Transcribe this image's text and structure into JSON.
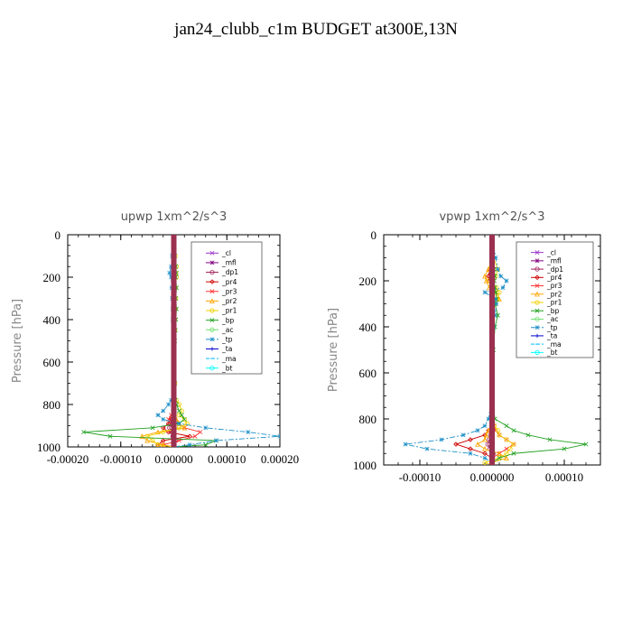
{
  "title": "jan24_clubb_c1m  BUDGET at300E,13N",
  "chart_data": [
    {
      "type": "line",
      "title": "upwp   1xm^2/s^3",
      "ylabel": "Pressure [hPa]",
      "xlabel": "",
      "xlim": [
        -0.0002,
        0.0002
      ],
      "ylim": [
        1000,
        0
      ],
      "xticks": [
        -0.0002,
        -0.0001,
        0.0,
        0.0001,
        0.0002
      ],
      "xtick_labels": [
        "-0.00020",
        "-0.00010",
        "0.00000",
        "0.00010",
        "0.00020"
      ],
      "yticks": [
        0,
        200,
        400,
        600,
        800,
        1000
      ],
      "ytick_labels": [
        "0",
        "200",
        "400",
        "600",
        "800",
        "1000"
      ],
      "legend_position": "top-right",
      "pressure": [
        0,
        100,
        150,
        180,
        200,
        250,
        300,
        350,
        400,
        450,
        500,
        600,
        700,
        780,
        800,
        830,
        850,
        870,
        890,
        910,
        930,
        950,
        970,
        990,
        1000
      ],
      "series": [
        {
          "name": "_cl",
          "color": "#9932cc",
          "values": [
            0,
            0,
            0,
            0,
            0,
            0,
            0,
            0,
            0,
            0,
            0,
            0,
            0,
            0,
            0,
            0,
            0,
            0,
            0,
            0,
            0,
            0,
            0,
            0,
            0
          ]
        },
        {
          "name": "_mfl",
          "color": "#800080",
          "values": [
            0,
            0,
            0,
            0,
            0,
            0,
            0,
            0,
            0,
            0,
            0,
            0,
            0,
            0,
            0,
            0,
            0,
            0,
            0,
            0,
            0,
            0,
            0,
            0,
            0
          ]
        },
        {
          "name": "_dp1",
          "color": "#a0205a",
          "values": [
            0,
            0,
            0,
            0,
            0,
            0,
            0,
            0,
            0,
            0,
            0,
            0,
            0,
            0,
            0,
            0,
            0,
            -3e-06,
            -6e-06,
            -8e-06,
            -4e-06,
            -2e-06,
            3e-06,
            1e-06,
            0
          ]
        },
        {
          "name": "_pr4",
          "color": "#cc0000",
          "values": [
            0,
            0,
            0,
            0,
            0,
            0,
            0,
            0,
            0,
            0,
            0,
            0,
            0,
            0,
            0,
            0,
            0,
            -5e-06,
            -1e-05,
            -2e-05,
            -1e-05,
            3e-05,
            -2e-05,
            -3e-05,
            0
          ]
        },
        {
          "name": "_pr3",
          "color": "#ff3030",
          "values": [
            0,
            0,
            0,
            0,
            0,
            0,
            0,
            0,
            0,
            0,
            0,
            0,
            0,
            0,
            0,
            0,
            -5e-06,
            -1e-05,
            1e-05,
            2e-05,
            5e-05,
            4e-05,
            1e-05,
            -2e-05,
            0
          ]
        },
        {
          "name": "_pr2",
          "color": "#ffa500",
          "values": [
            0,
            0,
            0,
            0,
            0,
            0,
            0,
            0,
            0,
            0,
            0,
            0,
            0,
            0,
            0,
            0,
            0,
            5e-06,
            1e-05,
            2e-05,
            -3e-05,
            -6e-05,
            -5e-05,
            -2e-05,
            0
          ]
        },
        {
          "name": "_pr1",
          "color": "#f0d000",
          "values": [
            0,
            3e-06,
            5e-06,
            4e-06,
            5e-06,
            3e-06,
            4e-06,
            3e-06,
            2e-06,
            2e-06,
            1e-06,
            1e-06,
            2e-06,
            5e-06,
            1e-05,
            1.5e-05,
            1e-05,
            2e-05,
            2.5e-05,
            1e-05,
            -2e-05,
            -5e-05,
            -4e-05,
            -3e-05,
            0
          ]
        },
        {
          "name": "_bp",
          "color": "#20a020",
          "values": [
            0,
            2e-06,
            4e-06,
            5e-06,
            4e-06,
            5e-06,
            4e-06,
            5e-06,
            4e-06,
            3e-06,
            2e-06,
            1e-06,
            2e-06,
            3e-06,
            5e-06,
            1e-05,
            1.5e-05,
            2e-05,
            1e-05,
            -4e-05,
            -0.00017,
            -0.00012,
            8e-05,
            6e-05,
            0
          ]
        },
        {
          "name": "_ac",
          "color": "#70e070",
          "values": [
            0,
            0,
            0,
            0,
            0,
            0,
            0,
            0,
            0,
            0,
            0,
            0,
            0,
            0,
            0,
            0,
            0,
            0,
            0,
            0,
            0,
            0,
            0,
            0,
            0
          ]
        },
        {
          "name": "_tp",
          "color": "#1e90c8",
          "values": [
            0,
            -3e-06,
            -5e-06,
            -8e-06,
            -5e-06,
            -4e-06,
            -3e-06,
            -2e-06,
            -2e-06,
            -1e-06,
            -1e-06,
            0,
            -1e-06,
            -5e-06,
            -1e-05,
            -2e-05,
            -3e-05,
            -2e-05,
            1e-05,
            6e-05,
            0.00014,
            0.0002,
            8e-05,
            3e-05,
            0
          ]
        },
        {
          "name": "_ta",
          "color": "#0000cd",
          "values": [
            0,
            0,
            0,
            0,
            0,
            0,
            0,
            0,
            0,
            0,
            0,
            0,
            0,
            0,
            0,
            0,
            0,
            0,
            0,
            0,
            0,
            0,
            0,
            0,
            0
          ]
        },
        {
          "name": "_ma",
          "color": "#00bfff",
          "values": [
            0,
            0,
            0,
            0,
            0,
            0,
            0,
            0,
            0,
            0,
            0,
            0,
            0,
            0,
            0,
            0,
            0,
            0,
            0,
            0,
            0,
            0,
            0,
            0,
            0
          ]
        },
        {
          "name": "_bt",
          "color": "#00ffff",
          "values": [
            0,
            0,
            0,
            0,
            0,
            0,
            0,
            0,
            0,
            0,
            0,
            0,
            0,
            0,
            0,
            0,
            0,
            0,
            0,
            0,
            0,
            0,
            0,
            0,
            0
          ]
        }
      ]
    },
    {
      "type": "line",
      "title": "vpwp   1xm^2/s^3",
      "ylabel": "Pressure [hPa]",
      "xlabel": "",
      "xlim": [
        -0.00015,
        0.00015
      ],
      "ylim": [
        1000,
        0
      ],
      "xticks": [
        -0.0001,
        0.0,
        0.0001
      ],
      "xtick_labels": [
        "-0.00010",
        "0.000000",
        "0.00010"
      ],
      "yticks": [
        0,
        200,
        400,
        600,
        800,
        1000
      ],
      "ytick_labels": [
        "0",
        "200",
        "400",
        "600",
        "800",
        "1000"
      ],
      "legend_position": "top-right",
      "pressure": [
        0,
        100,
        150,
        180,
        200,
        230,
        250,
        280,
        300,
        350,
        400,
        500,
        600,
        700,
        800,
        830,
        850,
        870,
        890,
        910,
        930,
        950,
        970,
        990,
        1000
      ],
      "series": [
        {
          "name": "_cl",
          "color": "#9932cc",
          "values": [
            0,
            0,
            0,
            0,
            0,
            0,
            0,
            0,
            0,
            0,
            0,
            0,
            0,
            0,
            0,
            0,
            0,
            0,
            0,
            0,
            0,
            0,
            0,
            0,
            0
          ]
        },
        {
          "name": "_mfl",
          "color": "#800080",
          "values": [
            0,
            0,
            0,
            0,
            0,
            0,
            0,
            0,
            0,
            0,
            0,
            0,
            0,
            0,
            0,
            0,
            0,
            0,
            0,
            0,
            0,
            0,
            0,
            0,
            0
          ]
        },
        {
          "name": "_dp1",
          "color": "#a0205a",
          "values": [
            0,
            0,
            0,
            0,
            0,
            0,
            0,
            0,
            0,
            0,
            0,
            0,
            0,
            0,
            0,
            0,
            0,
            -2e-06,
            -4e-06,
            -6e-06,
            -3e-06,
            2e-06,
            1e-06,
            0,
            0
          ]
        },
        {
          "name": "_pr4",
          "color": "#cc0000",
          "values": [
            0,
            0,
            -3e-06,
            -5e-06,
            -4e-06,
            3e-06,
            2e-06,
            0,
            0,
            0,
            0,
            0,
            0,
            0,
            0,
            0,
            -5e-06,
            -1e-05,
            -3e-05,
            -5e-05,
            -3e-05,
            -1e-05,
            0,
            0,
            0
          ]
        },
        {
          "name": "_pr3",
          "color": "#ff3030",
          "values": [
            0,
            0,
            2e-06,
            4e-06,
            3e-06,
            0,
            0,
            0,
            0,
            0,
            0,
            0,
            0,
            0,
            0,
            3e-06,
            5e-06,
            1e-05,
            2e-05,
            3e-05,
            2e-05,
            1e-05,
            0,
            0,
            0
          ]
        },
        {
          "name": "_pr2",
          "color": "#ffa500",
          "values": [
            0,
            0,
            -5e-06,
            -1e-05,
            -8e-06,
            -4e-06,
            5e-06,
            1e-05,
            4e-06,
            0,
            0,
            0,
            0,
            0,
            0,
            0,
            -5e-06,
            -8e-06,
            -1e-05,
            -2e-05,
            -1e-05,
            1e-05,
            2e-05,
            0,
            0
          ]
        },
        {
          "name": "_pr1",
          "color": "#f0d000",
          "values": [
            0,
            2e-06,
            8e-06,
            5e-06,
            -4e-06,
            6e-06,
            1e-05,
            8e-06,
            4e-06,
            2e-06,
            1e-06,
            0,
            0,
            0,
            0,
            3e-06,
            8e-06,
            1e-05,
            2e-05,
            3e-05,
            2.5e-05,
            2e-05,
            1e-05,
            -1e-05,
            0
          ]
        },
        {
          "name": "_bp",
          "color": "#20a020",
          "values": [
            0,
            0,
            3e-06,
            4e-06,
            3e-06,
            4e-06,
            5e-06,
            6e-06,
            4e-06,
            8e-06,
            4e-06,
            2e-06,
            1e-06,
            0,
            4e-06,
            2e-05,
            3e-05,
            5e-05,
            8e-05,
            0.00013,
            0.0001,
            3e-05,
            1e-05,
            0,
            0
          ]
        },
        {
          "name": "_ac",
          "color": "#70e070",
          "values": [
            0,
            0,
            0,
            0,
            0,
            0,
            0,
            0,
            0,
            0,
            0,
            0,
            0,
            0,
            0,
            0,
            0,
            0,
            0,
            0,
            0,
            0,
            0,
            0,
            0
          ]
        },
        {
          "name": "_tp",
          "color": "#1e90c8",
          "values": [
            0,
            5e-06,
            8e-06,
            1.2e-05,
            2e-05,
            1.5e-05,
            -1e-05,
            5e-06,
            6e-06,
            4e-06,
            2e-06,
            1e-06,
            0,
            0,
            -5e-06,
            -1e-05,
            -2e-05,
            -4e-05,
            -7e-05,
            -0.00012,
            -9e-05,
            -3e-05,
            -1e-05,
            0,
            0
          ]
        },
        {
          "name": "_ta",
          "color": "#0000cd",
          "values": [
            0,
            0,
            0,
            0,
            0,
            0,
            0,
            0,
            0,
            0,
            0,
            0,
            0,
            0,
            0,
            0,
            0,
            0,
            0,
            0,
            0,
            0,
            0,
            0,
            0
          ]
        },
        {
          "name": "_ma",
          "color": "#00bfff",
          "values": [
            0,
            0,
            0,
            0,
            0,
            0,
            0,
            0,
            0,
            0,
            0,
            0,
            0,
            0,
            0,
            0,
            0,
            0,
            0,
            0,
            0,
            0,
            0,
            0,
            0
          ]
        },
        {
          "name": "_bt",
          "color": "#00ffff",
          "values": [
            0,
            0,
            0,
            0,
            0,
            0,
            0,
            0,
            0,
            0,
            0,
            0,
            0,
            0,
            0,
            0,
            0,
            0,
            0,
            0,
            0,
            0,
            0,
            0,
            0
          ]
        }
      ]
    }
  ]
}
